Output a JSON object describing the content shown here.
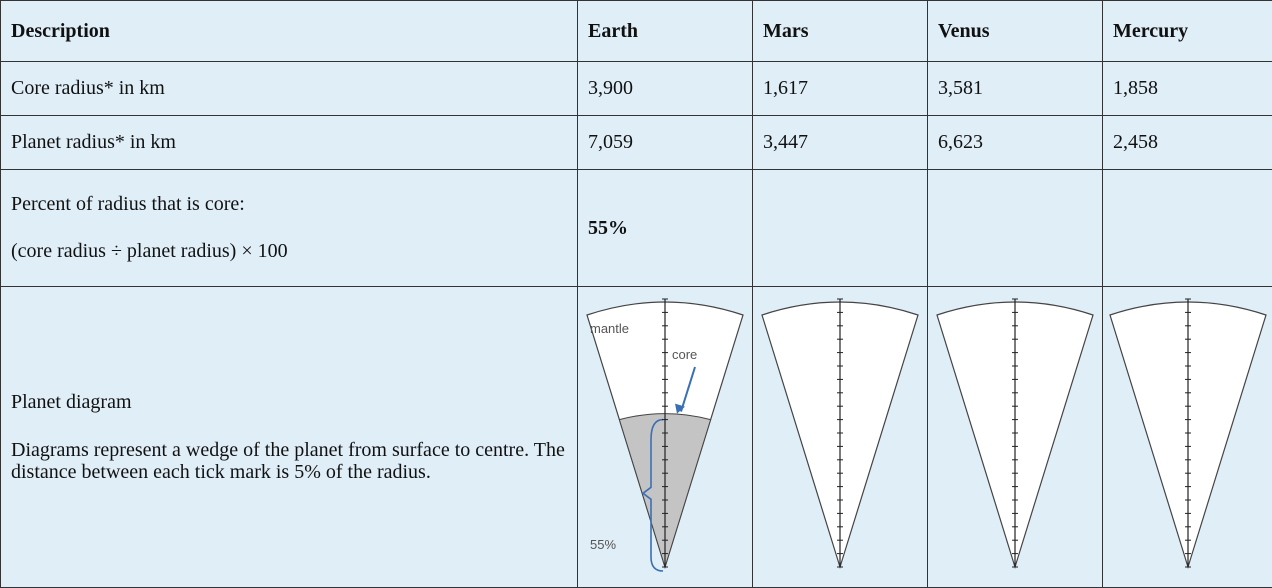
{
  "table": {
    "header": [
      "Description",
      "Earth",
      "Mars",
      "Venus",
      "Mercury"
    ],
    "rows": [
      [
        "Core radius* in km",
        "3,900",
        "1,617",
        "3,581",
        "1,858"
      ],
      [
        "Planet radius* in km",
        "7,059",
        "3,447",
        "6,623",
        "2,458"
      ]
    ],
    "percent_row": {
      "label": "Percent of radius that is core:",
      "formula": "(core radius ÷ planet radius) × 100",
      "earth": "55%"
    },
    "diagram_row": {
      "label": "Planet diagram",
      "description": "Diagrams represent a wedge of the planet from surface to centre. The distance between each tick mark is 5% of the radius."
    }
  },
  "diagram": {
    "mantle": "mantle",
    "core": "core",
    "percent": "55%"
  }
}
